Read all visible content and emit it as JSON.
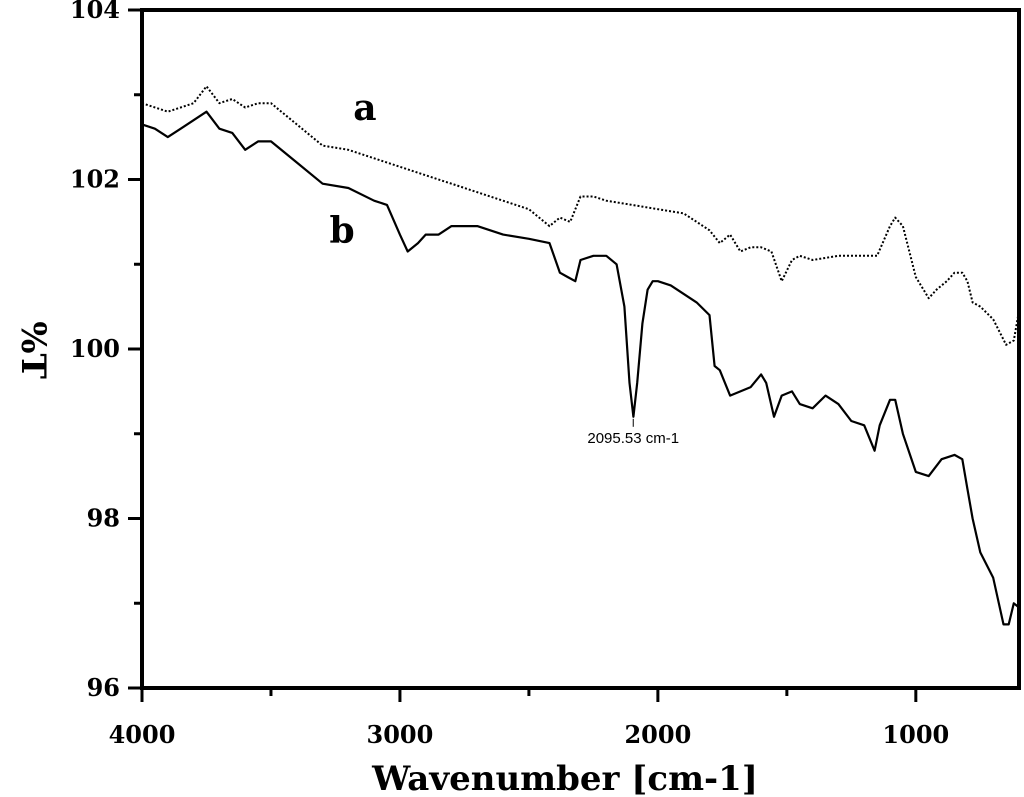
{
  "chart_data": {
    "type": "line",
    "title": "",
    "xlabel": "Wavenumber [cm-1]",
    "ylabel": "%T",
    "xlim": [
      4000,
      600
    ],
    "ylim": [
      96,
      104
    ],
    "x_reversed": true,
    "x_ticks": [
      "4000",
      "3000",
      "2000",
      "1000"
    ],
    "x_tick_values": [
      4000,
      3000,
      2000,
      1000
    ],
    "y_ticks": [
      "96",
      "98",
      "100",
      "102",
      "104"
    ],
    "y_tick_values": [
      96,
      98,
      100,
      102,
      104
    ],
    "grid": false,
    "series": [
      {
        "name": "a",
        "style": "dotted",
        "color": "#000000",
        "x": [
          4000,
          3900,
          3850,
          3800,
          3750,
          3700,
          3650,
          3600,
          3550,
          3500,
          3400,
          3300,
          3200,
          3100,
          3000,
          2900,
          2800,
          2700,
          2600,
          2500,
          2420,
          2380,
          2340,
          2300,
          2250,
          2200,
          2100,
          2000,
          1900,
          1800,
          1760,
          1720,
          1680,
          1640,
          1600,
          1560,
          1520,
          1480,
          1450,
          1400,
          1300,
          1200,
          1150,
          1100,
          1080,
          1050,
          1000,
          950,
          920,
          880,
          850,
          820,
          800,
          780,
          750,
          700,
          650,
          620,
          600
        ],
        "y": [
          102.9,
          102.8,
          102.85,
          102.9,
          103.1,
          102.9,
          102.95,
          102.85,
          102.9,
          102.9,
          102.65,
          102.4,
          102.35,
          102.25,
          102.15,
          102.05,
          101.95,
          101.85,
          101.75,
          101.65,
          101.45,
          101.55,
          101.5,
          101.8,
          101.8,
          101.75,
          101.7,
          101.65,
          101.6,
          101.4,
          101.25,
          101.35,
          101.15,
          101.2,
          101.2,
          101.15,
          100.8,
          101.05,
          101.1,
          101.05,
          101.1,
          101.1,
          101.1,
          101.45,
          101.55,
          101.45,
          100.85,
          100.6,
          100.7,
          100.8,
          100.9,
          100.9,
          100.8,
          100.55,
          100.5,
          100.35,
          100.05,
          100.1,
          100.45
        ]
      },
      {
        "name": "b",
        "style": "solid",
        "color": "#000000",
        "x": [
          4000,
          3950,
          3900,
          3850,
          3800,
          3750,
          3700,
          3650,
          3600,
          3550,
          3500,
          3400,
          3300,
          3200,
          3100,
          3050,
          3000,
          2970,
          2930,
          2900,
          2850,
          2800,
          2700,
          2600,
          2500,
          2420,
          2380,
          2350,
          2320,
          2300,
          2250,
          2200,
          2160,
          2130,
          2110,
          2095,
          2080,
          2060,
          2040,
          2020,
          2000,
          1950,
          1900,
          1850,
          1800,
          1780,
          1760,
          1720,
          1680,
          1640,
          1600,
          1580,
          1550,
          1520,
          1480,
          1450,
          1400,
          1350,
          1300,
          1250,
          1200,
          1160,
          1140,
          1100,
          1080,
          1050,
          1000,
          950,
          900,
          850,
          820,
          800,
          780,
          750,
          700,
          660,
          640,
          620,
          600
        ],
        "y": [
          102.65,
          102.6,
          102.5,
          102.6,
          102.7,
          102.8,
          102.6,
          102.55,
          102.35,
          102.45,
          102.45,
          102.2,
          101.95,
          101.9,
          101.75,
          101.7,
          101.35,
          101.15,
          101.25,
          101.35,
          101.35,
          101.45,
          101.45,
          101.35,
          101.3,
          101.25,
          100.9,
          100.85,
          100.8,
          101.05,
          101.1,
          101.1,
          101.0,
          100.5,
          99.6,
          99.2,
          99.6,
          100.3,
          100.7,
          100.8,
          100.8,
          100.75,
          100.65,
          100.55,
          100.4,
          99.8,
          99.75,
          99.45,
          99.5,
          99.55,
          99.7,
          99.6,
          99.2,
          99.45,
          99.5,
          99.35,
          99.3,
          99.45,
          99.35,
          99.15,
          99.1,
          98.8,
          99.1,
          99.4,
          99.4,
          99.0,
          98.55,
          98.5,
          98.7,
          98.75,
          98.7,
          98.35,
          98.0,
          97.6,
          97.3,
          96.75,
          96.75,
          97.0,
          96.95
        ]
      }
    ],
    "series_labels": [
      "a",
      "b"
    ],
    "annotations": [
      {
        "text": "2095.53 cm-1",
        "x": 2095.53,
        "y": 99.2
      }
    ]
  }
}
